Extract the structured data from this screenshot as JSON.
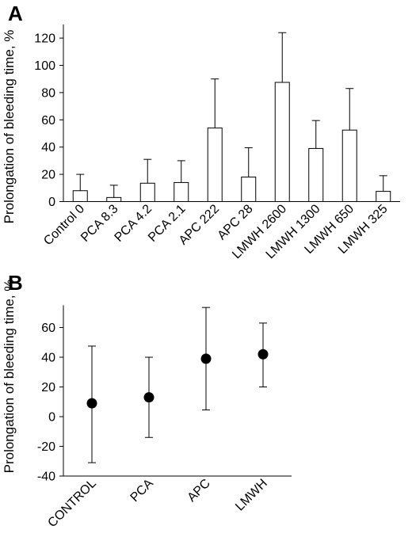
{
  "chart_data": [
    {
      "panel": "A",
      "type": "bar",
      "ylabel": "Prolongation of bleeding time, %",
      "ylim": [
        0,
        130
      ],
      "yticks": [
        0,
        20,
        40,
        60,
        80,
        100,
        120
      ],
      "categories": [
        "Control 0",
        "PCA 8.3",
        "PCA 4.2",
        "PCA 2.1",
        "APC 222",
        "APC 28",
        "LMWH 2600",
        "LMWH 1300",
        "LMWH 650",
        "LMWH 325"
      ],
      "values": [
        8,
        3,
        13.5,
        14,
        54,
        18,
        87.5,
        39,
        52.5,
        7.5
      ],
      "errors": [
        12,
        9,
        17.5,
        16,
        36,
        21.5,
        36.5,
        20.5,
        30.5,
        11.5
      ],
      "error_direction": "upper",
      "grid": false
    },
    {
      "panel": "B",
      "type": "scatter",
      "ylabel": "Prolongation of bleeding time, %",
      "ylim": [
        -40,
        75
      ],
      "yticks": [
        -40,
        -20,
        0,
        20,
        40,
        60
      ],
      "categories": [
        "CONTROL",
        "PCA",
        "APC",
        "LMWH"
      ],
      "values": [
        9,
        13,
        39,
        42
      ],
      "lower": [
        -31,
        -14,
        4.5,
        20
      ],
      "upper": [
        47.5,
        40,
        73.5,
        63
      ],
      "grid": false
    }
  ]
}
